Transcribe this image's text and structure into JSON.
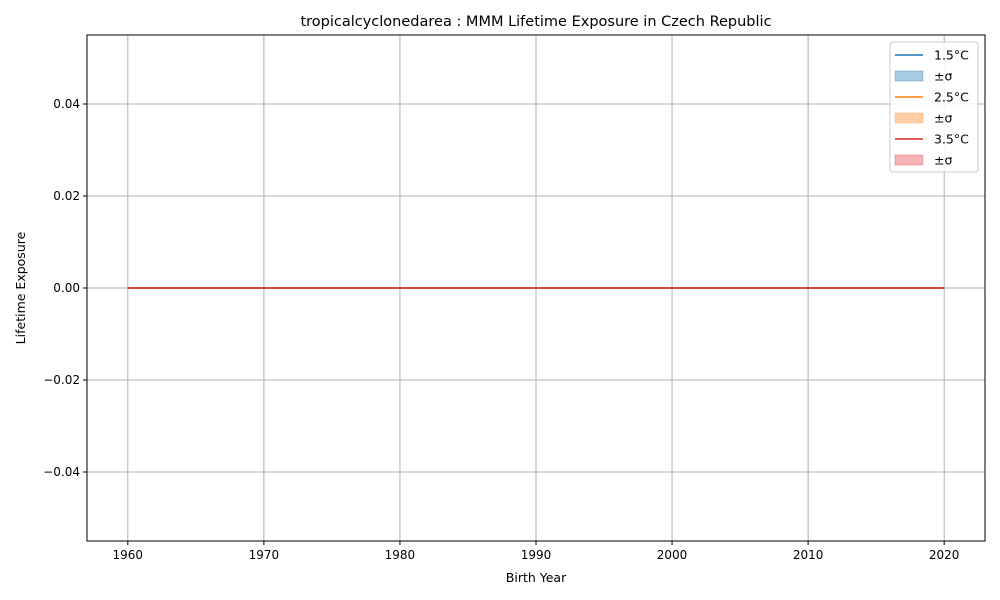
{
  "chart_data": {
    "type": "line",
    "title": "tropicalcyclonedarea : MMM Lifetime Exposure in Czech Republic",
    "xlabel": "Birth Year",
    "ylabel": "Lifetime Exposure",
    "xlim": [
      1957,
      2023
    ],
    "ylim": [
      -0.055,
      0.055
    ],
    "x_ticks": [
      1960,
      1970,
      1980,
      1990,
      2000,
      2010,
      2020
    ],
    "y_ticks": [
      0.04,
      0.02,
      0.0,
      -0.02,
      -0.04
    ],
    "y_tick_labels": [
      "0.04",
      "0.02",
      "0.00",
      "−0.02",
      "−0.04"
    ],
    "grid": true,
    "legend_position": "top-right",
    "x": [
      1960,
      2020
    ],
    "series": [
      {
        "name": "1.5°C",
        "values": [
          0,
          0
        ],
        "color": "#1f77b4",
        "band_label": "±σ",
        "band_color": "#a6cbe3"
      },
      {
        "name": "2.5°C",
        "values": [
          0,
          0
        ],
        "color": "#ff7f0e",
        "band_label": "±σ",
        "band_color": "#ffd0a8"
      },
      {
        "name": "3.5°C",
        "values": [
          0,
          0
        ],
        "color": "#d62728",
        "band_label": "±σ",
        "band_color": "#f4b4b5"
      }
    ]
  }
}
